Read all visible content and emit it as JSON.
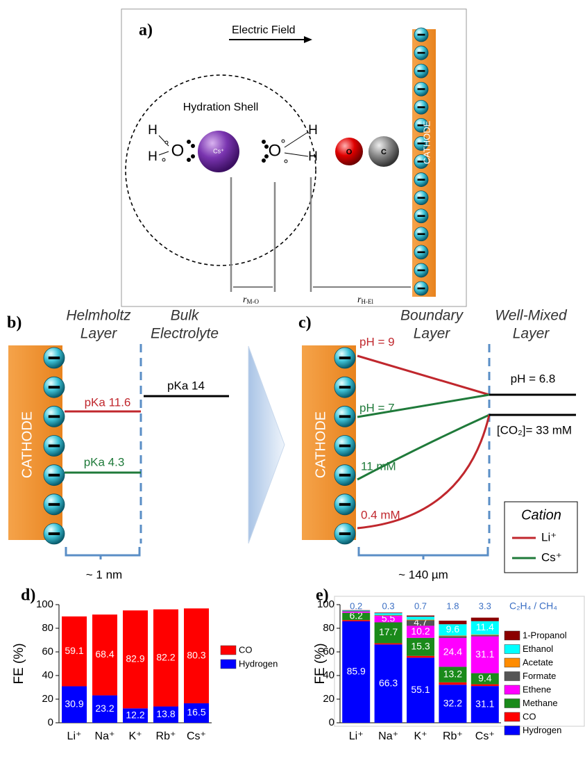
{
  "panel_a": {
    "label": "a)",
    "electric_field": "Electric Field",
    "hydration_shell": "Hydration Shell",
    "left_h": [
      "H",
      "H"
    ],
    "left_o": "O",
    "cation": "Cs⁺",
    "right_o": "O",
    "right_h": [
      "H",
      "H"
    ],
    "co_o": "O",
    "co_c": "C",
    "cathode": "CATHODE",
    "r_mo": {
      "symbol": "r",
      "subscript": "M-O"
    },
    "r_hel": {
      "symbol": "r",
      "subscript": "H-El"
    }
  },
  "panel_b": {
    "label": "b)",
    "helmholtz": [
      "Helmholtz",
      "Layer"
    ],
    "bulk": [
      "Bulk",
      "Electrolyte"
    ],
    "cathode": "CATHODE",
    "bulk_pka": "pKa 14",
    "li_pka": "pKa 11.6",
    "cs_pka": "pKa 4.3",
    "thickness": "~ 1 nm"
  },
  "panel_c": {
    "label": "c)",
    "boundary": [
      "Boundary",
      "Layer"
    ],
    "well_mixed": [
      "Well-Mixed",
      "Layer"
    ],
    "cathode": "CATHODE",
    "li_ph": "pH = 9",
    "cs_ph": "pH = 7",
    "cs_co2": "11 mM",
    "li_co2": "0.4 mM",
    "bulk_ph": "pH = 6.8",
    "bulk_co2": "[CO₂]= 33 mM",
    "legend": {
      "title": "Cation",
      "li": "Li⁺",
      "cs": "Cs⁺"
    },
    "thickness": "~ 140 µm"
  },
  "chart_data": [
    {
      "type": "bar",
      "stacked": true,
      "panel_label": "d)",
      "ylabel": "FE (%)",
      "categories": [
        "Li⁺",
        "Na⁺",
        "K⁺",
        "Rb⁺",
        "Cs⁺"
      ],
      "series": [
        {
          "name": "Hydrogen",
          "color": "#0000ff",
          "values": [
            30.9,
            23.2,
            12.2,
            13.8,
            16.5
          ]
        },
        {
          "name": "CO",
          "color": "#ff0000",
          "values": [
            59.1,
            68.4,
            82.9,
            82.2,
            80.3
          ]
        }
      ],
      "ylim": [
        0,
        100
      ],
      "yticks": [
        0,
        20,
        40,
        60,
        80,
        100
      ]
    },
    {
      "type": "bar",
      "stacked": true,
      "panel_label": "e)",
      "ylabel": "FE (%)",
      "categories": [
        "Li⁺",
        "Na⁺",
        "K⁺",
        "Rb⁺",
        "Cs⁺"
      ],
      "series": [
        {
          "name": "Hydrogen",
          "color": "#0000ff",
          "values": [
            85.9,
            66.3,
            55.1,
            32.2,
            31.1
          ]
        },
        {
          "name": "CO",
          "color": "#ff0000",
          "values": [
            1.0,
            1.0,
            1.5,
            2.0,
            1.5
          ]
        },
        {
          "name": "Methane",
          "color": "#1a8a1a",
          "values": [
            6.2,
            17.7,
            15.3,
            13.2,
            9.4
          ]
        },
        {
          "name": "Ethene",
          "color": "#ff00ff",
          "values": [
            1.0,
            5.5,
            10.2,
            24.4,
            31.1
          ]
        },
        {
          "name": "Formate",
          "color": "#555555",
          "values": [
            0.5,
            0.5,
            4.7,
            1.5,
            1.0
          ]
        },
        {
          "name": "Acetate",
          "color": "#ff8c00",
          "values": [
            0,
            0.3,
            0.5,
            0.5,
            0.5
          ]
        },
        {
          "name": "Ethanol",
          "color": "#00ffff",
          "values": [
            0.5,
            1.5,
            2.5,
            9.6,
            11.4
          ]
        },
        {
          "name": "1-Propanol",
          "color": "#8b0000",
          "values": [
            0.3,
            0.5,
            1.0,
            3.0,
            3.0
          ]
        }
      ],
      "ratio": {
        "title": "C₂H₄ / CH₄",
        "values": [
          0.2,
          0.3,
          0.7,
          1.8,
          3.3
        ]
      },
      "ylim": [
        0,
        100
      ],
      "yticks": [
        0,
        20,
        40,
        60,
        80,
        100
      ]
    }
  ]
}
